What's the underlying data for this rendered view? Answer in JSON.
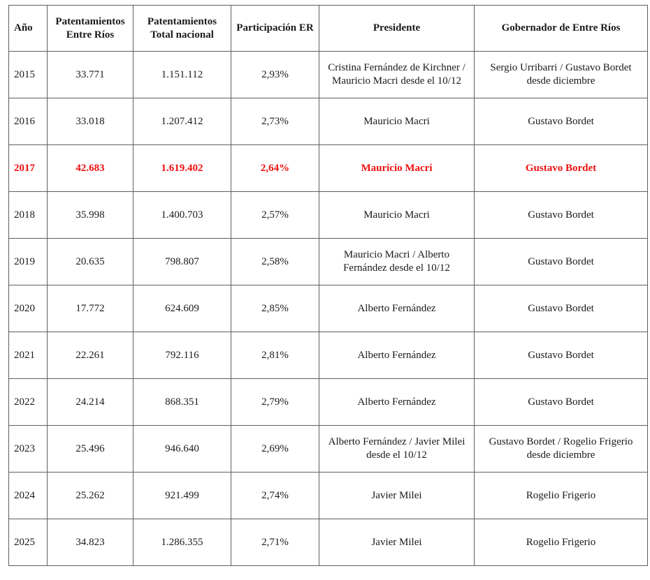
{
  "table": {
    "headers": [
      "Año",
      "Patentamientos Entre Ríos",
      "Patentamientos Total nacional",
      "Participación ER",
      "Presidente",
      "Gobernador de Entre Ríos"
    ],
    "highlight_color": "#ee1111",
    "highlight_row": 2,
    "rows": [
      {
        "year": "2015",
        "er": "33.771",
        "total": "1.151.112",
        "share": "2,93%",
        "president": "Cristina Fernández de Kirchner / Mauricio Macri desde el 10/12",
        "governor": "Sergio Urribarri / Gustavo Bordet desde diciembre"
      },
      {
        "year": "2016",
        "er": "33.018",
        "total": "1.207.412",
        "share": "2,73%",
        "president": "Mauricio Macri",
        "governor": "Gustavo Bordet"
      },
      {
        "year": "2017",
        "er": "42.683",
        "total": "1.619.402",
        "share": "2,64%",
        "president": "Mauricio Macri",
        "governor": "Gustavo Bordet"
      },
      {
        "year": "2018",
        "er": "35.998",
        "total": "1.400.703",
        "share": "2,57%",
        "president": "Mauricio Macri",
        "governor": "Gustavo Bordet"
      },
      {
        "year": "2019",
        "er": "20.635",
        "total": "798.807",
        "share": "2,58%",
        "president": "Mauricio Macri / Alberto Fernández desde el 10/12",
        "governor": "Gustavo Bordet"
      },
      {
        "year": "2020",
        "er": "17.772",
        "total": "624.609",
        "share": "2,85%",
        "president": "Alberto Fernández",
        "governor": "Gustavo Bordet"
      },
      {
        "year": "2021",
        "er": "22.261",
        "total": "792.116",
        "share": "2,81%",
        "president": "Alberto Fernández",
        "governor": "Gustavo Bordet"
      },
      {
        "year": "2022",
        "er": "24.214",
        "total": "868.351",
        "share": "2,79%",
        "president": "Alberto Fernández",
        "governor": "Gustavo Bordet"
      },
      {
        "year": "2023",
        "er": "25.496",
        "total": "946.640",
        "share": "2,69%",
        "president": "Alberto Fernández / Javier Milei desde el 10/12",
        "governor": "Gustavo Bordet / Rogelio Frigerio desde diciembre"
      },
      {
        "year": "2024",
        "er": "25.262",
        "total": "921.499",
        "share": "2,74%",
        "president": "Javier Milei",
        "governor": "Rogelio Frigerio"
      },
      {
        "year": "2025",
        "er": "34.823",
        "total": "1.286.355",
        "share": "2,71%",
        "president": "Javier Milei",
        "governor": "Rogelio Frigerio"
      }
    ]
  }
}
